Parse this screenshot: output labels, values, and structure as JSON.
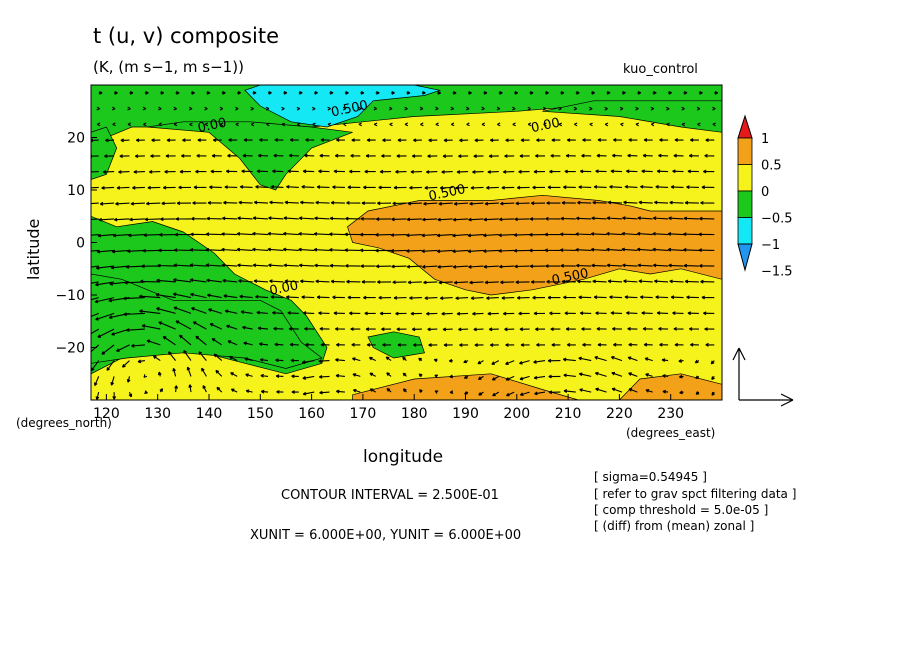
{
  "header": {
    "title": "t (u, v) composite",
    "subtitle": "(K, (m s−1, m s−1))",
    "run_name": "kuo_control"
  },
  "footer": {
    "contour_interval": "CONTOUR INTERVAL = 2.500E-01",
    "vector_units": "XUNIT = 6.000E+00, YUNIT = 6.000E+00",
    "notes": [
      "[ sigma=0.54945 ]",
      "[ refer to grav spct filtering data ]",
      "[ comp threshold = 5.0e-05 ]",
      "[ (diff) from (mean) zonal ]"
    ]
  },
  "chart_data": {
    "type": "heatmap",
    "title": "t (u, v) composite",
    "subtitle": "(K, (m s−1, m s−1))",
    "xlabel": "longitude",
    "ylabel": "latitude",
    "x_unit_label": "(degrees_east)",
    "y_unit_label": "(degrees_north)",
    "xlim": [
      117,
      240
    ],
    "ylim": [
      -30,
      30
    ],
    "x_ticks": [
      120,
      130,
      140,
      150,
      160,
      170,
      180,
      190,
      200,
      210,
      220,
      230
    ],
    "x_tick_labels": [
      "120",
      "130",
      "140",
      "150",
      "160",
      "170",
      "180",
      "190",
      "200",
      "210",
      "220",
      "230"
    ],
    "y_ticks": [
      20,
      10,
      0,
      -10,
      -20
    ],
    "y_tick_labels": [
      "20",
      "10",
      "0",
      "−10",
      "−20"
    ],
    "contour_interval": 0.25,
    "contour_labels": [
      {
        "text": "0.500",
        "lon": 164,
        "lat": 24
      },
      {
        "text": "0.00",
        "lon": 138,
        "lat": 21
      },
      {
        "text": "0.00",
        "lon": 203,
        "lat": 21
      },
      {
        "text": "0.500",
        "lon": 183,
        "lat": 8
      },
      {
        "text": "0.500",
        "lon": 207,
        "lat": -8
      },
      {
        "text": "0.00",
        "lon": 152,
        "lat": -10
      }
    ],
    "colorbar": {
      "labels": [
        "1",
        "0.5",
        "0",
        "−0.5",
        "−1",
        "−1.5"
      ],
      "levels": [
        1,
        0.5,
        0,
        -0.5,
        -1,
        -1.5
      ],
      "colors": [
        "#e8191a",
        "#f4a11a",
        "#f6f21c",
        "#1bc81b",
        "#14e8f4",
        "#2196f0"
      ]
    },
    "regions": [
      {
        "name": "positive-band",
        "value_range": [
          0,
          0.5
        ],
        "color": "#f6f21c",
        "polygon": [
          [
            117,
            30
          ],
          [
            240,
            30
          ],
          [
            240,
            -30
          ],
          [
            117,
            -30
          ]
        ]
      },
      {
        "name": "negative-north-west",
        "value_range": [
          -0.5,
          0
        ],
        "color": "#1bc81b",
        "polygon": [
          [
            117,
            30
          ],
          [
            240,
            30
          ],
          [
            240,
            27
          ],
          [
            225,
            27
          ],
          [
            200,
            25
          ],
          [
            180,
            24
          ],
          [
            170,
            23
          ],
          [
            160,
            22
          ],
          [
            150,
            21
          ],
          [
            140,
            22
          ],
          [
            133,
            22
          ],
          [
            125,
            22
          ],
          [
            120,
            20
          ],
          [
            117,
            18
          ]
        ]
      },
      {
        "name": "negative-north-bulge",
        "value_range": [
          -0.5,
          0
        ],
        "color": "#1bc81b",
        "polygon": [
          [
            128,
            22
          ],
          [
            140,
            21
          ],
          [
            146,
            16
          ],
          [
            150,
            11
          ],
          [
            153,
            10
          ],
          [
            155,
            13
          ],
          [
            160,
            18
          ],
          [
            168,
            21
          ],
          [
            160,
            22
          ],
          [
            148,
            23
          ],
          [
            135,
            23
          ]
        ]
      },
      {
        "name": "negative-north-east",
        "value_range": [
          -0.5,
          0
        ],
        "color": "#1bc81b",
        "polygon": [
          [
            205,
            25
          ],
          [
            220,
            24
          ],
          [
            232,
            22
          ],
          [
            240,
            21
          ],
          [
            240,
            27
          ],
          [
            215,
            27
          ]
        ]
      },
      {
        "name": "negative-west-strip",
        "value_range": [
          -0.5,
          0
        ],
        "color": "#1bc81b",
        "polygon": [
          [
            117,
            21
          ],
          [
            120,
            22
          ],
          [
            122,
            18
          ],
          [
            120,
            13
          ],
          [
            117,
            12
          ]
        ]
      },
      {
        "name": "negative-west",
        "value_range": [
          -0.5,
          0
        ],
        "color": "#1bc81b",
        "polygon": [
          [
            117,
            5
          ],
          [
            122,
            3
          ],
          [
            129,
            4
          ],
          [
            135,
            2
          ],
          [
            141,
            -2
          ],
          [
            145,
            -6
          ],
          [
            151,
            -9
          ],
          [
            156,
            -11
          ],
          [
            159,
            -14
          ],
          [
            163,
            -20
          ],
          [
            162,
            -23
          ],
          [
            155,
            -25
          ],
          [
            147,
            -23
          ],
          [
            135,
            -20
          ],
          [
            125,
            -21
          ],
          [
            117,
            -25
          ]
        ]
      },
      {
        "name": "negative-west-lower",
        "value_range": [
          -0.5,
          0
        ],
        "color": "#1bc81b",
        "polygon": [
          [
            117,
            -6
          ],
          [
            123,
            -7
          ],
          [
            133,
            -11
          ],
          [
            143,
            -11
          ],
          [
            150,
            -11
          ],
          [
            154,
            -13
          ],
          [
            158,
            -19
          ],
          [
            162,
            -22
          ],
          [
            155,
            -24
          ],
          [
            147,
            -22
          ],
          [
            135,
            -21
          ],
          [
            124,
            -22
          ],
          [
            117,
            -23
          ]
        ]
      },
      {
        "name": "negative-patch-south",
        "value_range": [
          -0.5,
          0
        ],
        "color": "#1bc81b",
        "polygon": [
          [
            171,
            -18
          ],
          [
            176,
            -17
          ],
          [
            181,
            -18
          ],
          [
            182,
            -21
          ],
          [
            176,
            -22
          ],
          [
            172,
            -20
          ]
        ]
      },
      {
        "name": "strong-negative-north",
        "value_range": [
          -1,
          -0.5
        ],
        "color": "#14e8f4",
        "polygon": [
          [
            147,
            29
          ],
          [
            150,
            26
          ],
          [
            156,
            23
          ],
          [
            163,
            22
          ],
          [
            169,
            24
          ],
          [
            172,
            27
          ],
          [
            182,
            28
          ],
          [
            185,
            29
          ],
          [
            180,
            30
          ],
          [
            150,
            30
          ]
        ]
      },
      {
        "name": "positive-east-core",
        "value_range": [
          0.5,
          1
        ],
        "color": "#f4a11a",
        "polygon": [
          [
            167,
            3
          ],
          [
            171,
            6
          ],
          [
            181,
            8
          ],
          [
            195,
            8
          ],
          [
            205,
            9
          ],
          [
            216,
            8
          ],
          [
            222,
            7
          ],
          [
            226,
            6
          ],
          [
            240,
            6
          ],
          [
            240,
            -7
          ],
          [
            232,
            -5
          ],
          [
            226,
            -6
          ],
          [
            220,
            -5
          ],
          [
            213,
            -7
          ],
          [
            203,
            -9
          ],
          [
            195,
            -10
          ],
          [
            190,
            -9
          ],
          [
            184,
            -7
          ],
          [
            179,
            -3
          ],
          [
            173,
            -1
          ],
          [
            168,
            0
          ]
        ]
      },
      {
        "name": "positive-south-east",
        "value_range": [
          0.5,
          1
        ],
        "color": "#f4a11a",
        "polygon": [
          [
            168,
            -29
          ],
          [
            180,
            -26
          ],
          [
            195,
            -25
          ],
          [
            205,
            -28
          ],
          [
            212,
            -30
          ],
          [
            168,
            -30
          ]
        ]
      },
      {
        "name": "positive-south-east-2",
        "value_range": [
          0.5,
          1
        ],
        "color": "#f4a11a",
        "polygon": [
          [
            220,
            -30
          ],
          [
            224,
            -26
          ],
          [
            232,
            -25
          ],
          [
            240,
            -27
          ],
          [
            240,
            -30
          ]
        ]
      }
    ],
    "vector_field": {
      "grid_spacing_deg": 3,
      "description": "wind vectors (u, v); strong easterlies in the tropics, cyclonic circulation in the southwest corner"
    }
  }
}
